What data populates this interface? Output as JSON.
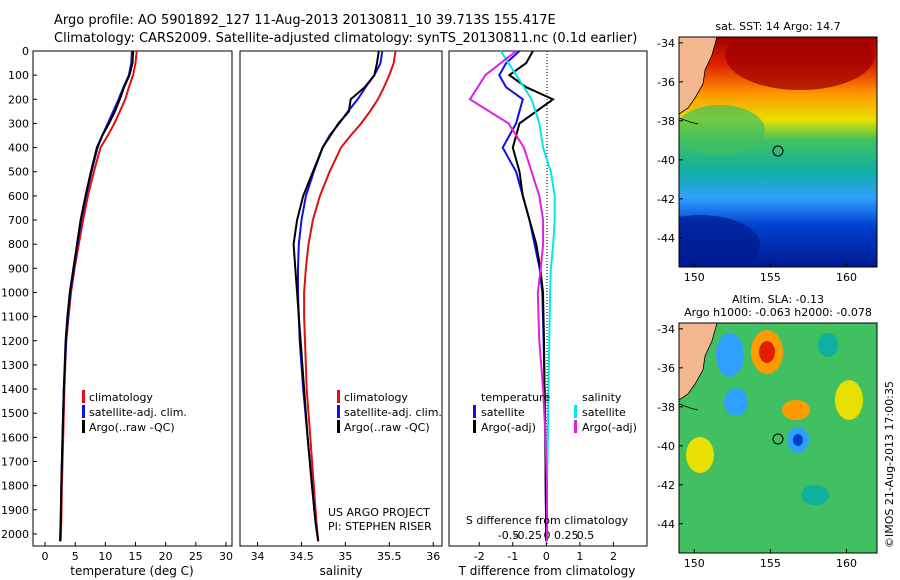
{
  "header": {
    "line1": "Argo profile: AO 5901892_127 11-Aug-2013 20130811_10 39.713S 155.417E",
    "line2": "Climatology: CARS2009. Satellite-adjusted climatology: synTS_20130811.nc (0.1d earlier)"
  },
  "colors": {
    "climatology": "#e01010",
    "satellite": "#1010e0",
    "argo": "#000000",
    "sal_satellite": "#00e8e8",
    "sal_argo": "#e020e0"
  },
  "chart_data": [
    {
      "type": "line",
      "xlabel": "temperature (deg C)",
      "ylabel": "",
      "xlim": [
        -2,
        31
      ],
      "ylim": [
        2050,
        0
      ],
      "xticks": [
        0,
        5,
        10,
        15,
        20,
        25,
        30
      ],
      "xtick_labels": [
        "0",
        "5",
        "10",
        "15",
        "20",
        "25",
        "30"
      ],
      "yticks": [
        0,
        100,
        200,
        300,
        400,
        500,
        600,
        700,
        800,
        900,
        1000,
        1100,
        1200,
        1300,
        1400,
        1500,
        1600,
        1700,
        1800,
        1900,
        2000
      ],
      "ytick_labels": [
        "0",
        "100",
        "200",
        "300",
        "400",
        "500",
        "600",
        "700",
        "800",
        "900",
        "1000",
        "1100",
        "1200",
        "1300",
        "1400",
        "1500",
        "1600",
        "1700",
        "1800",
        "1900",
        "2000"
      ],
      "legend": [
        "climatology",
        "satellite-adj. clim.",
        "Argo(..raw -QC)"
      ],
      "series": [
        {
          "name": "climatology",
          "color": "#e01010",
          "x": [
            15.2,
            15.0,
            14.6,
            13.9,
            13.3,
            12.4,
            11.5,
            10.4,
            9.2,
            8.1,
            7.1,
            6.3,
            5.6,
            4.9,
            4.3,
            3.9,
            3.5,
            3.2,
            3.0,
            2.8,
            2.7,
            2.6
          ],
          "y": [
            0,
            50,
            100,
            150,
            200,
            250,
            300,
            350,
            400,
            500,
            600,
            700,
            800,
            900,
            1000,
            1100,
            1200,
            1400,
            1600,
            1800,
            1950,
            2030
          ]
        },
        {
          "name": "satellite-adj. clim.",
          "color": "#1010e0",
          "x": [
            14.4,
            14.3,
            13.9,
            13.0,
            12.2,
            11.3,
            10.4,
            9.5,
            8.7,
            7.7,
            6.8,
            6.0,
            5.4,
            4.8,
            4.2,
            3.8,
            3.5,
            3.1,
            2.9,
            2.7,
            2.6,
            2.5
          ],
          "y": [
            0,
            50,
            100,
            150,
            200,
            250,
            300,
            350,
            400,
            500,
            600,
            700,
            800,
            900,
            1000,
            1100,
            1200,
            1400,
            1600,
            1800,
            1950,
            2030
          ]
        },
        {
          "name": "Argo(..raw -QC)",
          "color": "#000000",
          "x": [
            14.6,
            14.5,
            14.0,
            13.1,
            12.4,
            11.6,
            10.6,
            9.5,
            8.6,
            7.6,
            6.7,
            5.9,
            5.3,
            4.7,
            4.1,
            3.7,
            3.4,
            3.1,
            2.9,
            2.7,
            2.6,
            2.5
          ],
          "y": [
            0,
            50,
            100,
            150,
            200,
            250,
            300,
            350,
            400,
            500,
            600,
            700,
            800,
            900,
            1000,
            1100,
            1200,
            1400,
            1600,
            1800,
            1950,
            2030
          ]
        }
      ]
    },
    {
      "type": "line",
      "xlabel": "salinity",
      "xlim": [
        33.8,
        36.1
      ],
      "ylim": [
        2050,
        0
      ],
      "xticks": [
        34,
        34.5,
        35,
        35.5,
        36
      ],
      "xtick_labels": [
        "34",
        "34.5",
        "35",
        "35.5",
        "36"
      ],
      "legend": [
        "climatology",
        "satellite-adj. clim.",
        "Argo(..raw -QC)"
      ],
      "annotation": [
        "US ARGO PROJECT",
        "PI: STEPHEN RISER"
      ],
      "series": [
        {
          "name": "climatology",
          "color": "#e01010",
          "x": [
            35.57,
            35.55,
            35.5,
            35.44,
            35.37,
            35.28,
            35.18,
            35.06,
            34.95,
            34.82,
            34.71,
            34.63,
            34.58,
            34.55,
            34.53,
            34.53,
            34.54,
            34.56,
            34.6,
            34.64,
            34.67,
            34.69
          ],
          "y": [
            0,
            50,
            100,
            150,
            200,
            250,
            300,
            350,
            400,
            500,
            600,
            700,
            800,
            900,
            1000,
            1100,
            1200,
            1400,
            1600,
            1800,
            1950,
            2030
          ]
        },
        {
          "name": "satellite-adj. clim.",
          "color": "#1010e0",
          "x": [
            35.42,
            35.4,
            35.33,
            35.23,
            35.14,
            35.03,
            34.93,
            34.82,
            34.74,
            34.64,
            34.55,
            34.5,
            34.47,
            34.46,
            34.46,
            34.47,
            34.48,
            34.52,
            34.57,
            34.62,
            34.66,
            34.69
          ],
          "y": [
            0,
            50,
            100,
            150,
            200,
            250,
            300,
            350,
            400,
            500,
            600,
            700,
            800,
            900,
            1000,
            1100,
            1200,
            1400,
            1600,
            1800,
            1950,
            2030
          ]
        },
        {
          "name": "Argo(..raw -QC)",
          "color": "#000000",
          "x": [
            35.38,
            35.36,
            35.33,
            35.22,
            35.06,
            35.04,
            34.92,
            34.83,
            34.74,
            34.63,
            34.52,
            34.45,
            34.41,
            34.43,
            34.45,
            34.47,
            34.49,
            34.53,
            34.57,
            34.62,
            34.66,
            34.69
          ],
          "y": [
            0,
            50,
            100,
            150,
            200,
            250,
            300,
            350,
            400,
            500,
            600,
            700,
            800,
            900,
            1000,
            1100,
            1200,
            1400,
            1600,
            1800,
            1950,
            2030
          ]
        }
      ]
    },
    {
      "type": "line",
      "xlabel": "T difference from climatology",
      "xlabel2": "S difference from climatology",
      "xlim": [
        -2.9,
        3.0
      ],
      "ylim": [
        2050,
        0
      ],
      "xticks": [
        -2,
        -1,
        0,
        1,
        2
      ],
      "xtick_labels": [
        "-2",
        "-1",
        "0",
        "1",
        "2"
      ],
      "xticks2": [
        -0.5,
        -0.25,
        0,
        0.25,
        0.5
      ],
      "xtick2_labels": [
        "-0.5",
        "-0.25",
        "0",
        "0.25",
        "0.5"
      ],
      "legend_headers": [
        "temperature",
        "salinity"
      ],
      "legend": [
        "satellite",
        "Argo(-adj)",
        "satellite",
        "Argo(-adj)"
      ],
      "series": [
        {
          "name": "satellite",
          "group": "temperature",
          "color": "#1010e0",
          "x": [
            -0.8,
            -1.2,
            -1.4,
            -1.2,
            -0.7,
            -0.9,
            -1.3,
            -0.9,
            -0.7,
            -0.5,
            -0.35,
            -0.2,
            -0.12,
            -0.08,
            -0.05,
            -0.03,
            -0.02,
            0
          ],
          "y": [
            0,
            50,
            100,
            150,
            200,
            300,
            400,
            500,
            600,
            700,
            800,
            900,
            1000,
            1200,
            1400,
            1600,
            1800,
            2030
          ]
        },
        {
          "name": "Argo(-adj)",
          "group": "temperature",
          "color": "#000000",
          "x": [
            -0.4,
            -0.6,
            -1.1,
            -0.6,
            0.2,
            -0.8,
            -1.0,
            -0.8,
            -0.7,
            -0.5,
            -0.3,
            -0.18,
            -0.1,
            -0.07,
            -0.05,
            -0.03,
            -0.02,
            0
          ],
          "y": [
            0,
            50,
            100,
            150,
            200,
            300,
            400,
            500,
            600,
            700,
            800,
            900,
            1000,
            1200,
            1400,
            1600,
            1800,
            2030
          ]
        },
        {
          "name": "satellite",
          "group": "salinity",
          "color": "#00e8e8",
          "x": [
            -0.6,
            -0.4,
            -0.2,
            -0.1,
            -0.05,
            0.05,
            0.1,
            0.1,
            0.08,
            0.05,
            0.04,
            0.03,
            0.02,
            0.01,
            0,
            0
          ],
          "y": [
            0,
            100,
            200,
            300,
            400,
            500,
            600,
            700,
            800,
            900,
            1000,
            1200,
            1400,
            1600,
            1800,
            2030
          ]
        },
        {
          "name": "Argo(-adj)",
          "group": "salinity",
          "color": "#e020e0",
          "x": [
            -0.4,
            -0.8,
            -1.0,
            -0.5,
            -0.3,
            -0.2,
            -0.1,
            -0.05,
            -0.05,
            -0.08,
            -0.12,
            -0.1,
            -0.05,
            -0.02,
            0,
            0
          ],
          "y": [
            0,
            100,
            200,
            300,
            400,
            500,
            600,
            700,
            800,
            900,
            1000,
            1200,
            1400,
            1600,
            1800,
            2030
          ]
        }
      ]
    },
    {
      "type": "heatmap",
      "title": "sat. SST: 14 Argo: 14.7",
      "xlim": [
        149,
        162
      ],
      "ylim": [
        -45.5,
        -33.7
      ],
      "xticks": [
        150,
        155,
        160
      ],
      "xtick_labels": [
        "150",
        "155",
        "160"
      ],
      "yticks": [
        -34,
        -36,
        -38,
        -40,
        -42,
        -44
      ],
      "ytick_labels": [
        "-34",
        "-36",
        "-38",
        "-40",
        "-42",
        "-44"
      ],
      "marker": {
        "lon": 155.4,
        "lat": -39.7
      }
    },
    {
      "type": "heatmap",
      "title": "Altim. SLA: -0.13",
      "subtitle": "Argo h1000: -0.063 h2000: -0.078",
      "xlim": [
        149,
        162
      ],
      "ylim": [
        -45.5,
        -33.7
      ],
      "xticks": [
        150,
        155,
        160
      ],
      "xtick_labels": [
        "150",
        "155",
        "160"
      ],
      "yticks": [
        -34,
        -36,
        -38,
        -40,
        -42,
        -44
      ],
      "ytick_labels": [
        "-34",
        "-36",
        "-38",
        "-40",
        "-42",
        "-44"
      ],
      "marker": {
        "lon": 155.4,
        "lat": -39.7
      }
    }
  ],
  "credit": "©IMOS 21-Aug-2013 17:00:35"
}
